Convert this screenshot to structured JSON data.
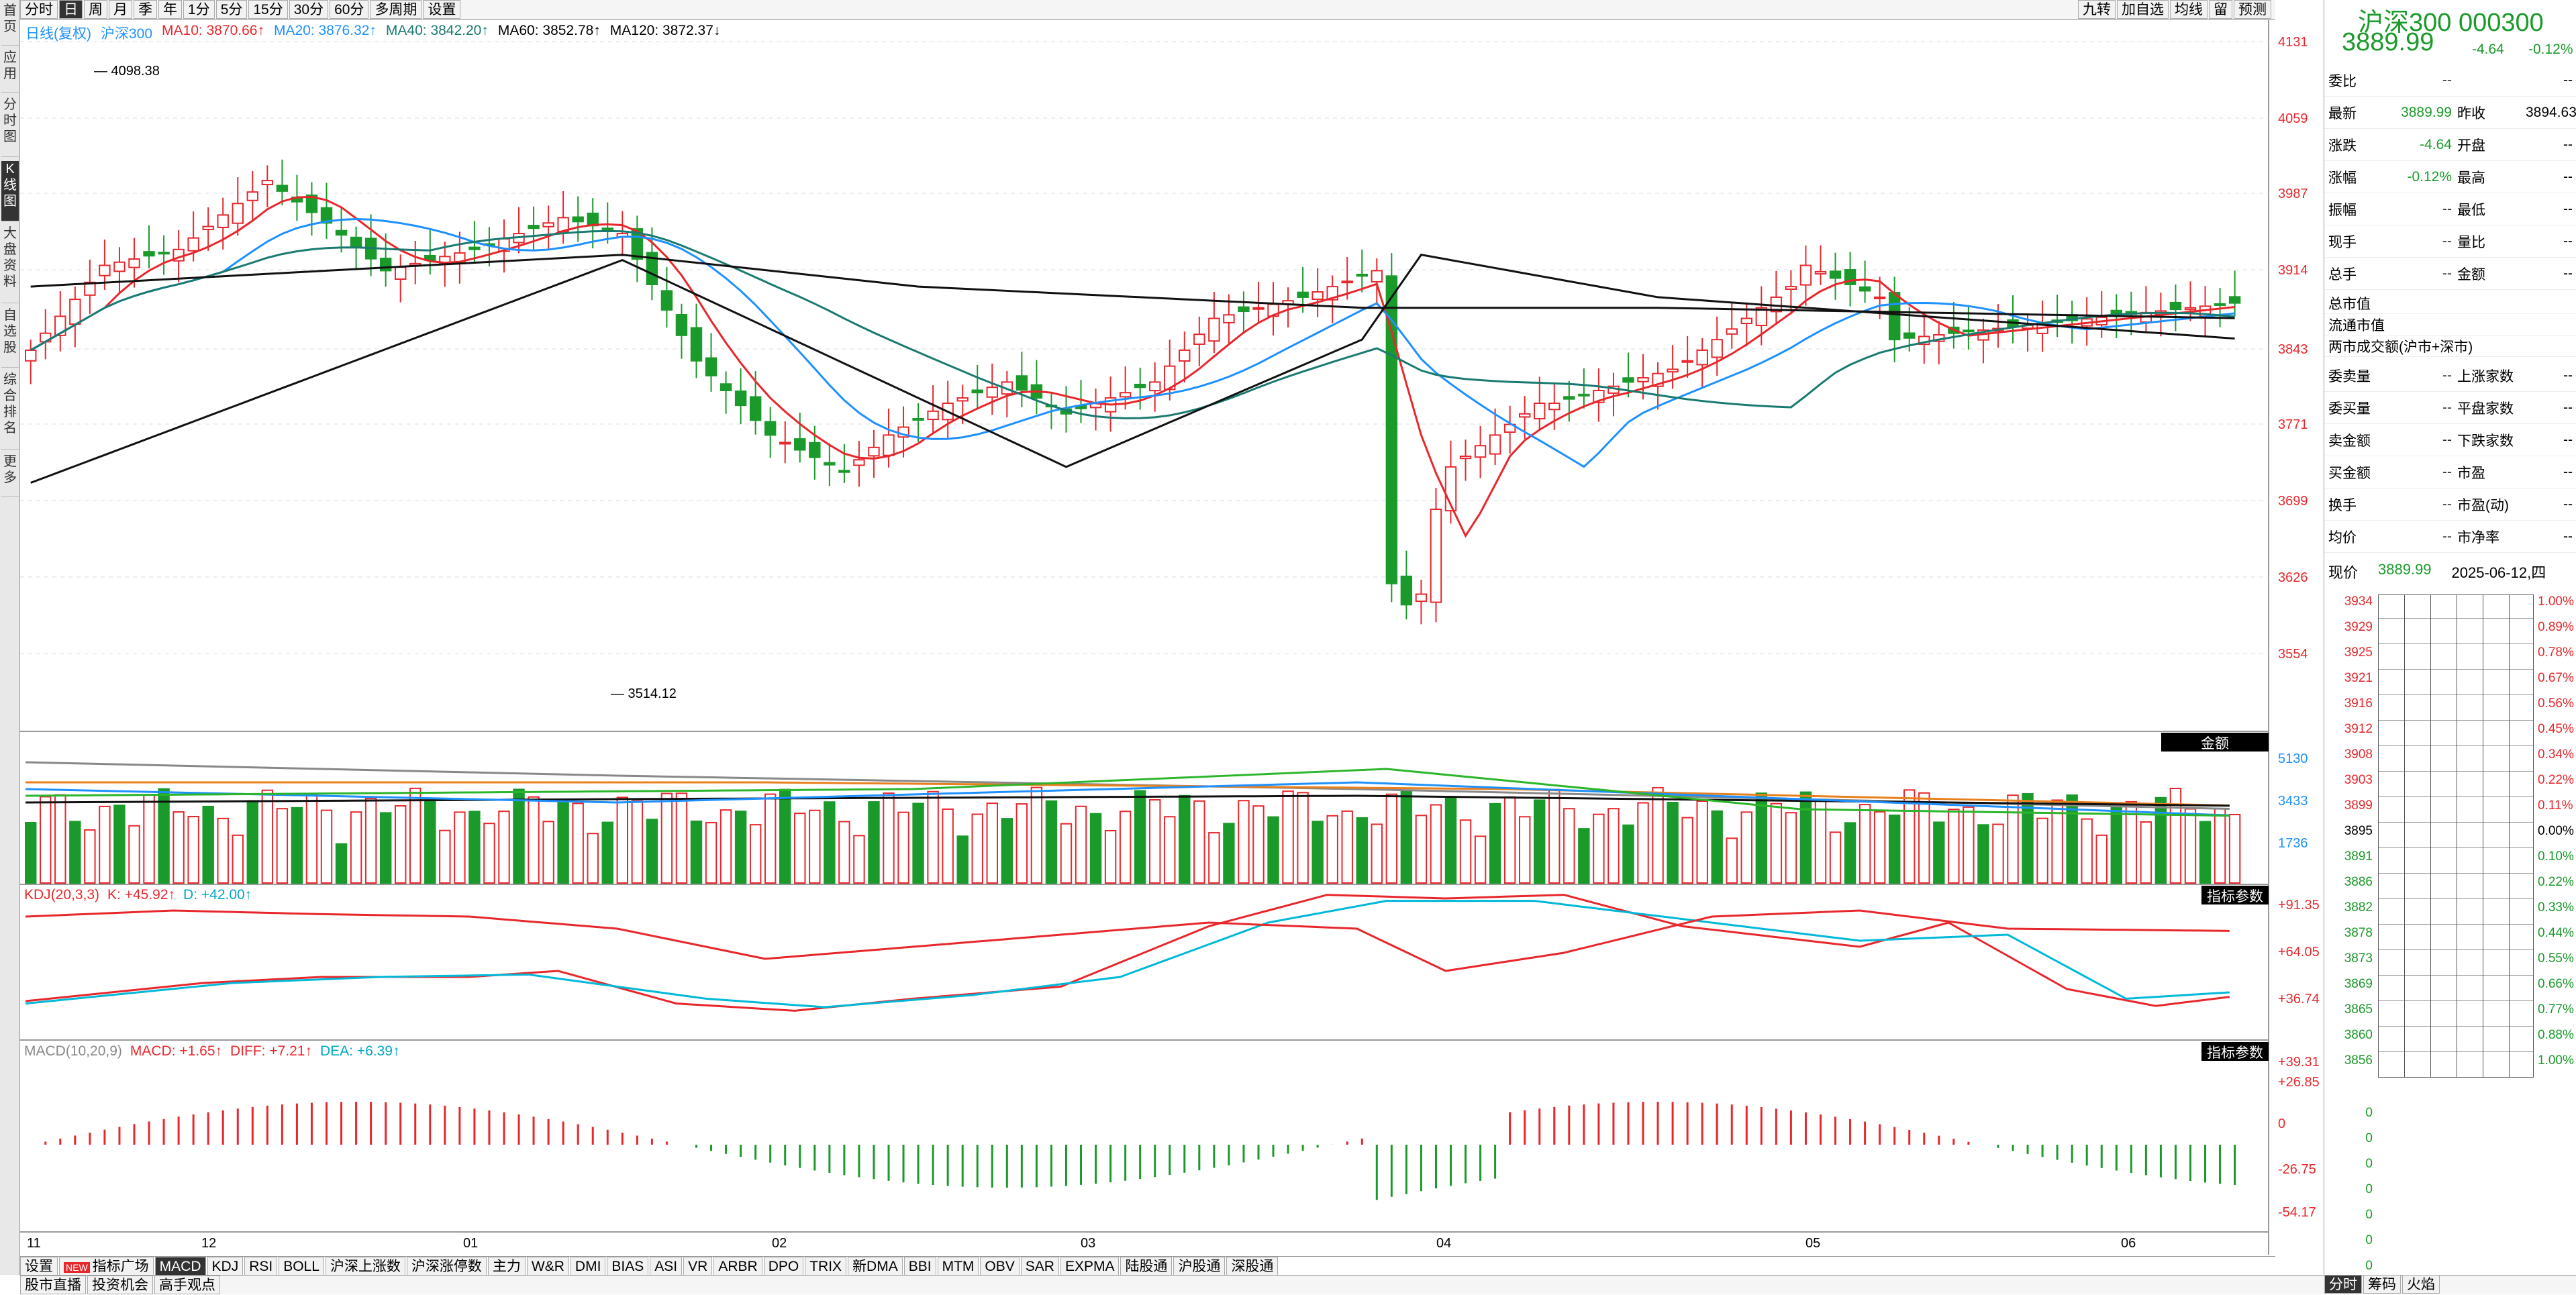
{
  "top_toolbar": {
    "periods": [
      "分时",
      "日",
      "周",
      "月",
      "季",
      "年",
      "1分",
      "5分",
      "15分",
      "30分",
      "60分",
      "多周期",
      "设置"
    ],
    "active_period": "日",
    "right_items": [
      "九转",
      "加自选",
      "均线",
      "留",
      "预测"
    ]
  },
  "left_sidebar": [
    "首页",
    "应用",
    "分时图",
    "K线图",
    "大盘资料",
    "自选股",
    "综合排名",
    "更多"
  ],
  "main_legend": {
    "mode": "日线(复权)",
    "name": "沪深300",
    "ma10": "MA10: 3870.66↑",
    "ma20": "MA20: 3876.32↑",
    "ma40": "MA40: 3842.20↑",
    "ma60": "MA60: 3852.78↑",
    "ma120": "MA120: 3872.37↓"
  },
  "annotations": {
    "high": "4098.38",
    "low": "3514.12"
  },
  "price_axis": [
    "4131",
    "4059",
    "3987",
    "3914",
    "3843",
    "3771",
    "3699",
    "3626",
    "3554"
  ],
  "volume_axis": [
    "5130",
    "3433",
    "1736"
  ],
  "volume_tag": "金额",
  "kdj": {
    "label": "KDJ(20,3,3)",
    "k": "K: +45.92↑",
    "d": "D: +42.00↑",
    "axis": [
      "+91.35",
      "+64.05",
      "+36.74"
    ],
    "tag": "指标参数"
  },
  "macd": {
    "label": "MACD(10,20,9)",
    "macd": "MACD: +1.65↑",
    "diff": "DIFF: +7.21↑",
    "dea": "DEA: +6.39↑",
    "axis": [
      "+39.31",
      "+26.85",
      "0",
      "-26.75",
      "-54.17"
    ],
    "tag": "指标参数"
  },
  "months": [
    "11",
    "12",
    "01",
    "02",
    "03",
    "04",
    "05",
    "06"
  ],
  "bottom_tabs": [
    "设置",
    "指标广场",
    "MACD",
    "KDJ",
    "RSI",
    "BOLL",
    "沪深上涨数",
    "沪深涨停数",
    "主力",
    "W&R",
    "DMI",
    "BIAS",
    "ASI",
    "VR",
    "ARBR",
    "DPO",
    "TRIX",
    "新DMA",
    "BBI",
    "MTM",
    "OBV",
    "SAR",
    "EXPMA",
    "陆股通",
    "沪股通",
    "深股通"
  ],
  "new_badge": "NEW",
  "active_tab": "MACD",
  "status_bar": [
    "股市直播",
    "投资机会",
    "高手观点"
  ],
  "right_panel": {
    "title": "沪深300 000300",
    "price": "3889.99",
    "change": "-4.64",
    "pct": "-0.12%",
    "rows": [
      {
        "l1": "委比",
        "v1": "--",
        "l2": "",
        "v2": "--"
      },
      {
        "l1": "最新",
        "v1": "3889.99",
        "l2": "昨收",
        "v2": "3894.63"
      },
      {
        "l1": "涨跌",
        "v1": "-4.64",
        "l2": "开盘",
        "v2": "--"
      },
      {
        "l1": "涨幅",
        "v1": "-0.12%",
        "l2": "最高",
        "v2": "--"
      },
      {
        "l1": "振幅",
        "v1": "--",
        "l2": "最低",
        "v2": "--"
      },
      {
        "l1": "现手",
        "v1": "--",
        "l2": "量比",
        "v2": "--"
      },
      {
        "l1": "总手",
        "v1": "--",
        "l2": "金额",
        "v2": "--"
      }
    ],
    "rows2": [
      "总市值",
      "流通市值",
      "两市成交额(沪市+深市)"
    ],
    "rows3": [
      {
        "l1": "委卖量",
        "v1": "--",
        "l2": "上涨家数",
        "v2": "--"
      },
      {
        "l1": "委买量",
        "v1": "--",
        "l2": "平盘家数",
        "v2": "--"
      },
      {
        "l1": "卖金额",
        "v1": "--",
        "l2": "下跌家数",
        "v2": "--"
      },
      {
        "l1": "买金额",
        "v1": "--",
        "l2": "市盈",
        "v2": "--"
      },
      {
        "l1": "换手",
        "v1": "--",
        "l2": "市盈(动)",
        "v2": "--"
      },
      {
        "l1": "均价",
        "v1": "--",
        "l2": "市净率",
        "v2": "--"
      }
    ],
    "now_label": "现价",
    "now_price": "3889.99",
    "date": "2025-06-12,四",
    "mini_left": [
      "3934",
      "3929",
      "3925",
      "3921",
      "3916",
      "3912",
      "3908",
      "3903",
      "3899",
      "3895",
      "3891",
      "3886",
      "3882",
      "3878",
      "3873",
      "3869",
      "3865",
      "3860",
      "3856",
      "0",
      "0",
      "0",
      "0",
      "0",
      "0",
      "0"
    ],
    "mini_right": [
      "1.00%",
      "0.89%",
      "0.78%",
      "0.67%",
      "0.56%",
      "0.45%",
      "0.34%",
      "0.22%",
      "0.11%",
      "0.00%",
      "0.10%",
      "0.22%",
      "0.33%",
      "0.44%",
      "0.55%",
      "0.66%",
      "0.77%",
      "0.88%",
      "1.00%"
    ],
    "bottom_tabs": [
      "分时",
      "筹码",
      "火焰"
    ]
  },
  "colors": {
    "up": "#e8272c",
    "down": "#1a9a2a",
    "ma10": "#e8272c",
    "ma20": "#1e90ff",
    "ma40": "#1a7a70",
    "ma60": "#111111",
    "ma120": "#111111"
  }
}
